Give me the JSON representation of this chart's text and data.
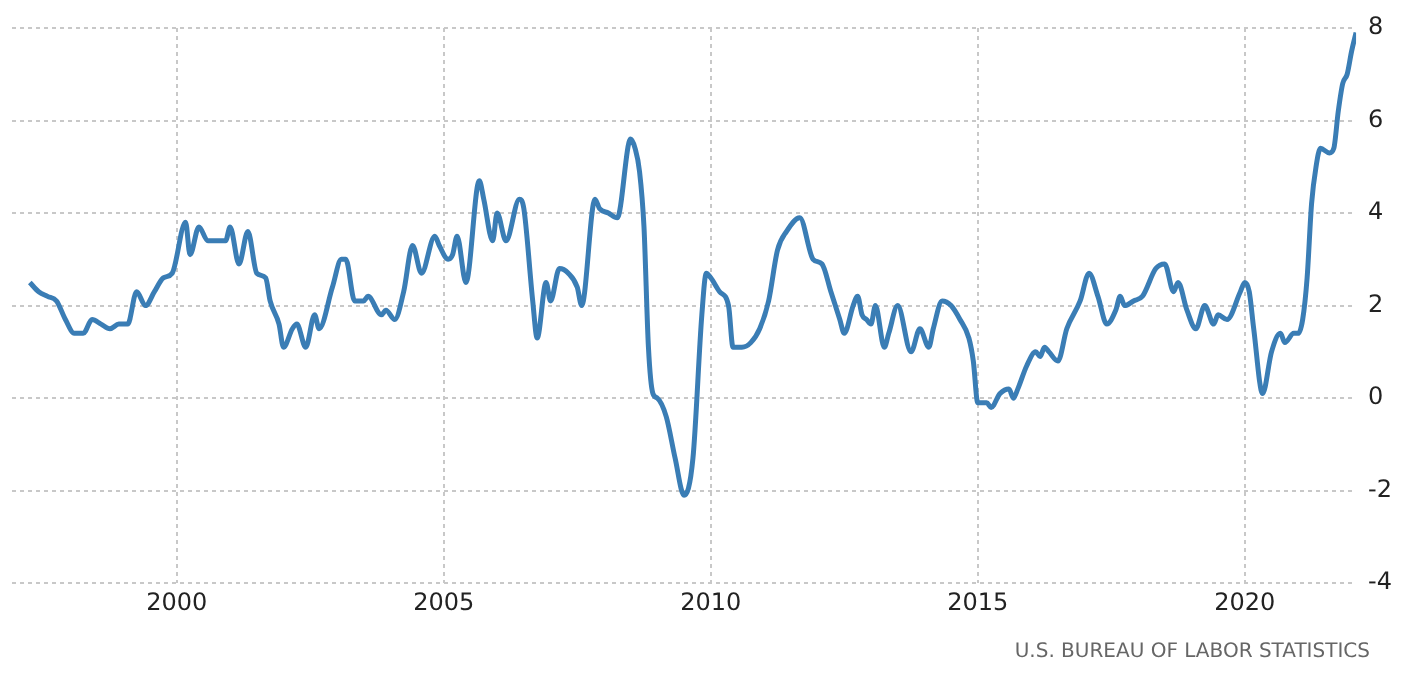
{
  "chart_data": {
    "type": "line",
    "annotations": [
      "U.S. BUREAU OF LABOR STATISTICS"
    ],
    "x": [
      "1997-04",
      "1997-06",
      "1997-08",
      "1997-10",
      "1997-12",
      "1998-02",
      "1998-04",
      "1998-06",
      "1998-08",
      "1998-10",
      "1998-12",
      "1999-02",
      "1999-04",
      "1999-06",
      "1999-08",
      "1999-10",
      "1999-12",
      "2000-03",
      "2000-04",
      "2000-06",
      "2000-08",
      "2000-10",
      "2000-12",
      "2001-01",
      "2001-03",
      "2001-05",
      "2001-07",
      "2001-09",
      "2001-10",
      "2001-12",
      "2002-01",
      "2002-03",
      "2002-04",
      "2002-06",
      "2002-08",
      "2002-09",
      "2002-12",
      "2003-02",
      "2003-03",
      "2003-05",
      "2003-07",
      "2003-08",
      "2003-11",
      "2003-12",
      "2004-02",
      "2004-04",
      "2004-06",
      "2004-08",
      "2004-11",
      "2004-12",
      "2005-02",
      "2005-03",
      "2005-04",
      "2005-06",
      "2005-09",
      "2005-10",
      "2005-12",
      "2006-01",
      "2006-03",
      "2006-06",
      "2006-07",
      "2006-09",
      "2006-10",
      "2006-12",
      "2007-01",
      "2007-03",
      "2007-05",
      "2007-07",
      "2007-08",
      "2007-11",
      "2007-12",
      "2008-02",
      "2008-04",
      "2008-07",
      "2008-08",
      "2008-09",
      "2008-10",
      "2008-11",
      "2008-12",
      "2009-01",
      "2009-03",
      "2009-05",
      "2009-07",
      "2009-09",
      "2009-11",
      "2009-12",
      "2010-01",
      "2010-03",
      "2010-05",
      "2010-06",
      "2010-08",
      "2010-10",
      "2010-12",
      "2011-02",
      "2011-04",
      "2011-06",
      "2011-09",
      "2011-12",
      "2012-02",
      "2012-04",
      "2012-06",
      "2012-07",
      "2012-09",
      "2012-10",
      "2012-11",
      "2012-12",
      "2013-01",
      "2013-02",
      "2013-04",
      "2013-05",
      "2013-07",
      "2013-10",
      "2013-12",
      "2014-02",
      "2014-03",
      "2014-05",
      "2014-07",
      "2014-09",
      "2014-11",
      "2014-12",
      "2015-01",
      "2015-03",
      "2015-04",
      "2015-06",
      "2015-08",
      "2015-09",
      "2015-10",
      "2015-12",
      "2016-02",
      "2016-03",
      "2016-04",
      "2016-05",
      "2016-07",
      "2016-09",
      "2016-12",
      "2017-02",
      "2017-04",
      "2017-06",
      "2017-08",
      "2017-09",
      "2017-10",
      "2017-12",
      "2018-02",
      "2018-05",
      "2018-07",
      "2018-09",
      "2018-10",
      "2018-12",
      "2019-02",
      "2019-04",
      "2019-06",
      "2019-07",
      "2019-09",
      "2019-12",
      "2020-01",
      "2020-02",
      "2020-03",
      "2020-05",
      "2020-07",
      "2020-09",
      "2020-10",
      "2020-12",
      "2021-01",
      "2021-02",
      "2021-03",
      "2021-04",
      "2021-05",
      "2021-06",
      "2021-08",
      "2021-09",
      "2021-10",
      "2021-11",
      "2021-12",
      "2022-01",
      "2022-02"
    ],
    "series": [
      {
        "color": "#3a7db5",
        "values": [
          2.5,
          2.3,
          2.2,
          2.1,
          1.7,
          1.4,
          1.4,
          1.7,
          1.6,
          1.5,
          1.6,
          1.6,
          2.3,
          2.0,
          2.3,
          2.6,
          2.7,
          3.8,
          3.1,
          3.7,
          3.4,
          3.4,
          3.4,
          3.7,
          2.9,
          3.6,
          2.7,
          2.6,
          2.1,
          1.6,
          1.1,
          1.5,
          1.6,
          1.1,
          1.8,
          1.5,
          2.4,
          3.0,
          3.0,
          2.1,
          2.1,
          2.2,
          1.8,
          1.9,
          1.7,
          2.3,
          3.3,
          2.7,
          3.5,
          3.3,
          3.0,
          3.1,
          3.5,
          2.5,
          4.7,
          4.3,
          3.4,
          4.0,
          3.4,
          4.3,
          4.1,
          2.1,
          1.3,
          2.5,
          2.1,
          2.8,
          2.7,
          2.4,
          2.0,
          4.3,
          4.1,
          4.0,
          3.9,
          5.6,
          5.4,
          4.9,
          3.7,
          1.1,
          0.1,
          0.0,
          -0.4,
          -1.3,
          -2.1,
          -1.3,
          1.8,
          2.7,
          2.6,
          2.3,
          2.0,
          1.1,
          1.1,
          1.2,
          1.5,
          2.1,
          3.2,
          3.6,
          3.9,
          3.0,
          2.9,
          2.3,
          1.7,
          1.4,
          2.0,
          2.2,
          1.8,
          1.7,
          1.6,
          2.0,
          1.1,
          1.4,
          2.0,
          1.0,
          1.5,
          1.1,
          1.5,
          2.1,
          2.0,
          1.7,
          1.3,
          0.8,
          -0.1,
          -0.1,
          -0.2,
          0.1,
          0.2,
          0.0,
          0.2,
          0.7,
          1.0,
          0.9,
          1.1,
          1.0,
          0.8,
          1.5,
          2.1,
          2.7,
          2.2,
          1.6,
          1.9,
          2.2,
          2.0,
          2.1,
          2.2,
          2.8,
          2.9,
          2.3,
          2.5,
          1.9,
          1.5,
          2.0,
          1.6,
          1.8,
          1.7,
          2.3,
          2.5,
          2.3,
          1.5,
          0.1,
          1.0,
          1.4,
          1.2,
          1.4,
          1.4,
          1.7,
          2.6,
          4.2,
          5.0,
          5.4,
          5.3,
          5.4,
          6.2,
          6.8,
          7.0,
          7.5,
          7.9
        ]
      }
    ],
    "xlim": [
      "1996-12",
      "2022-02"
    ],
    "xticks": [
      "2000",
      "2005",
      "2010",
      "2015",
      "2020"
    ],
    "ylim": [
      -4,
      8
    ],
    "yticks": [
      -4,
      -2,
      0,
      2,
      4,
      6,
      8
    ],
    "grid": true,
    "legend": false,
    "marker": "none",
    "line_style": "solid"
  }
}
